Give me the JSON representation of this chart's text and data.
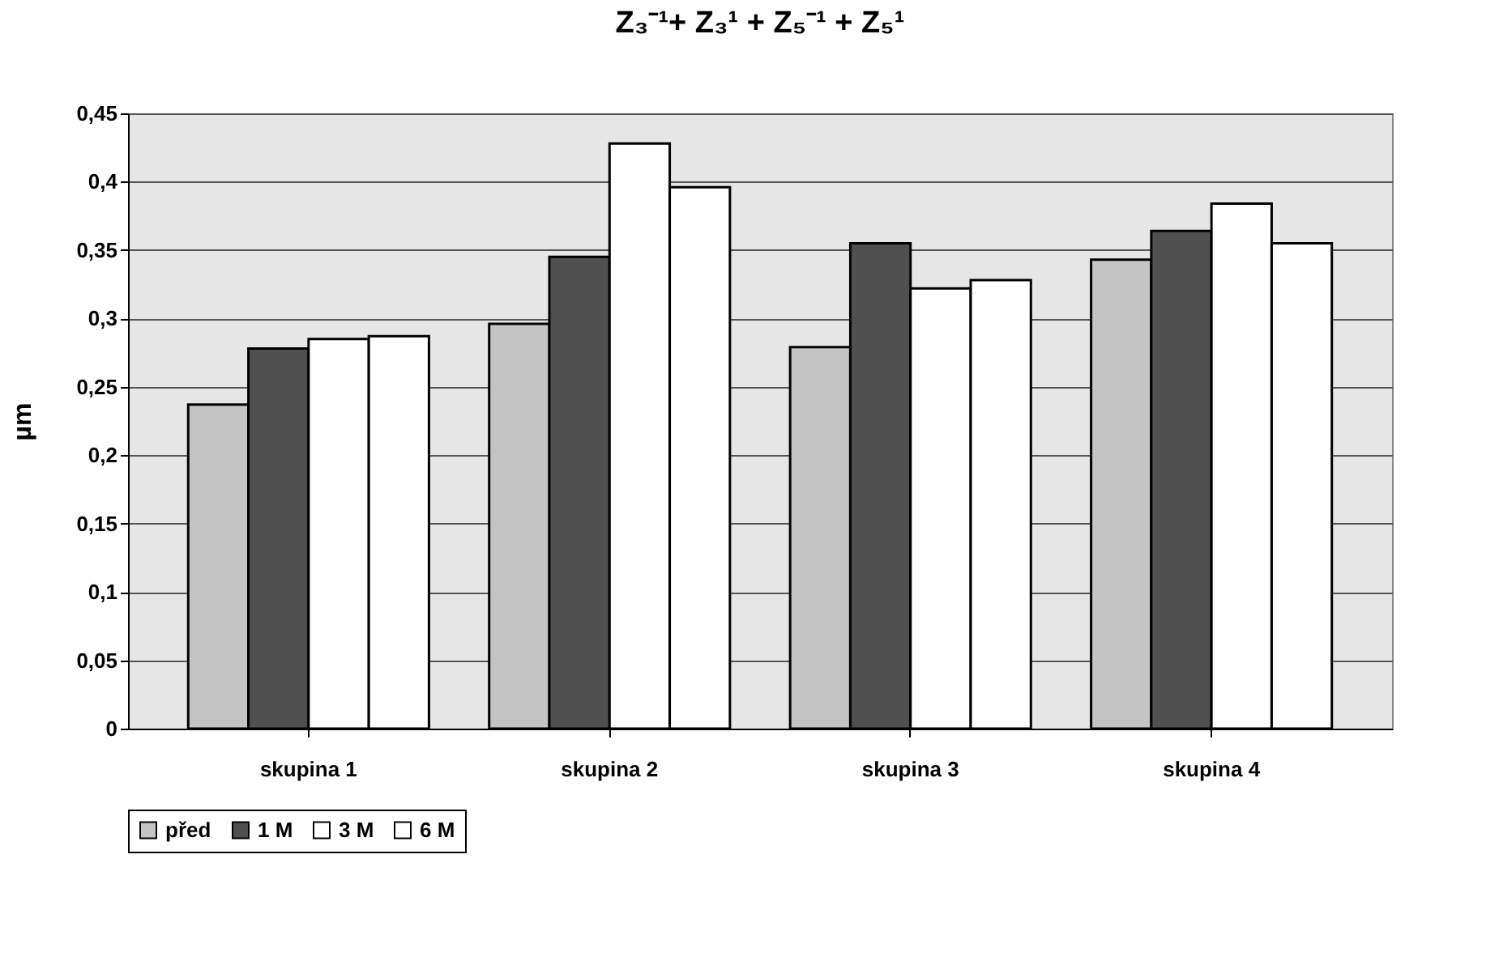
{
  "chart_data": {
    "type": "bar",
    "title": "Z₃⁻¹+ Z₃¹ + Z₅⁻¹ + Z₅¹",
    "ylabel": "µm",
    "categories": [
      "skupina 1",
      "skupina 2",
      "skupina 3",
      "skupina 4"
    ],
    "series": [
      {
        "name": "před",
        "color": "#c4c4c4",
        "values": [
          0.237,
          0.296,
          0.279,
          0.343
        ]
      },
      {
        "name": "1 M",
        "color": "#505050",
        "values": [
          0.278,
          0.345,
          0.355,
          0.364
        ]
      },
      {
        "name": "3 M",
        "color": "#ffffff",
        "values": [
          0.285,
          0.428,
          0.322,
          0.384
        ]
      },
      {
        "name": "6 M",
        "color": "#ffffff",
        "values": [
          0.287,
          0.396,
          0.328,
          0.355
        ]
      }
    ],
    "ylim": [
      0,
      0.45
    ],
    "yticks": [
      0,
      {
        "value": 0.05,
        "label": "0,05"
      },
      {
        "value": 0.1,
        "label": "0,1"
      },
      {
        "value": 0.15,
        "label": "0,15"
      },
      {
        "value": 0.2,
        "label": "0,2"
      },
      {
        "value": 0.25,
        "label": "0,25"
      },
      {
        "value": 0.3,
        "label": "0,3"
      },
      {
        "value": 0.35,
        "label": "0,35"
      },
      {
        "value": 0.4,
        "label": "0,4"
      },
      {
        "value": 0.45,
        "label": "0,45"
      }
    ],
    "grid": "y",
    "legend": "bottom"
  }
}
